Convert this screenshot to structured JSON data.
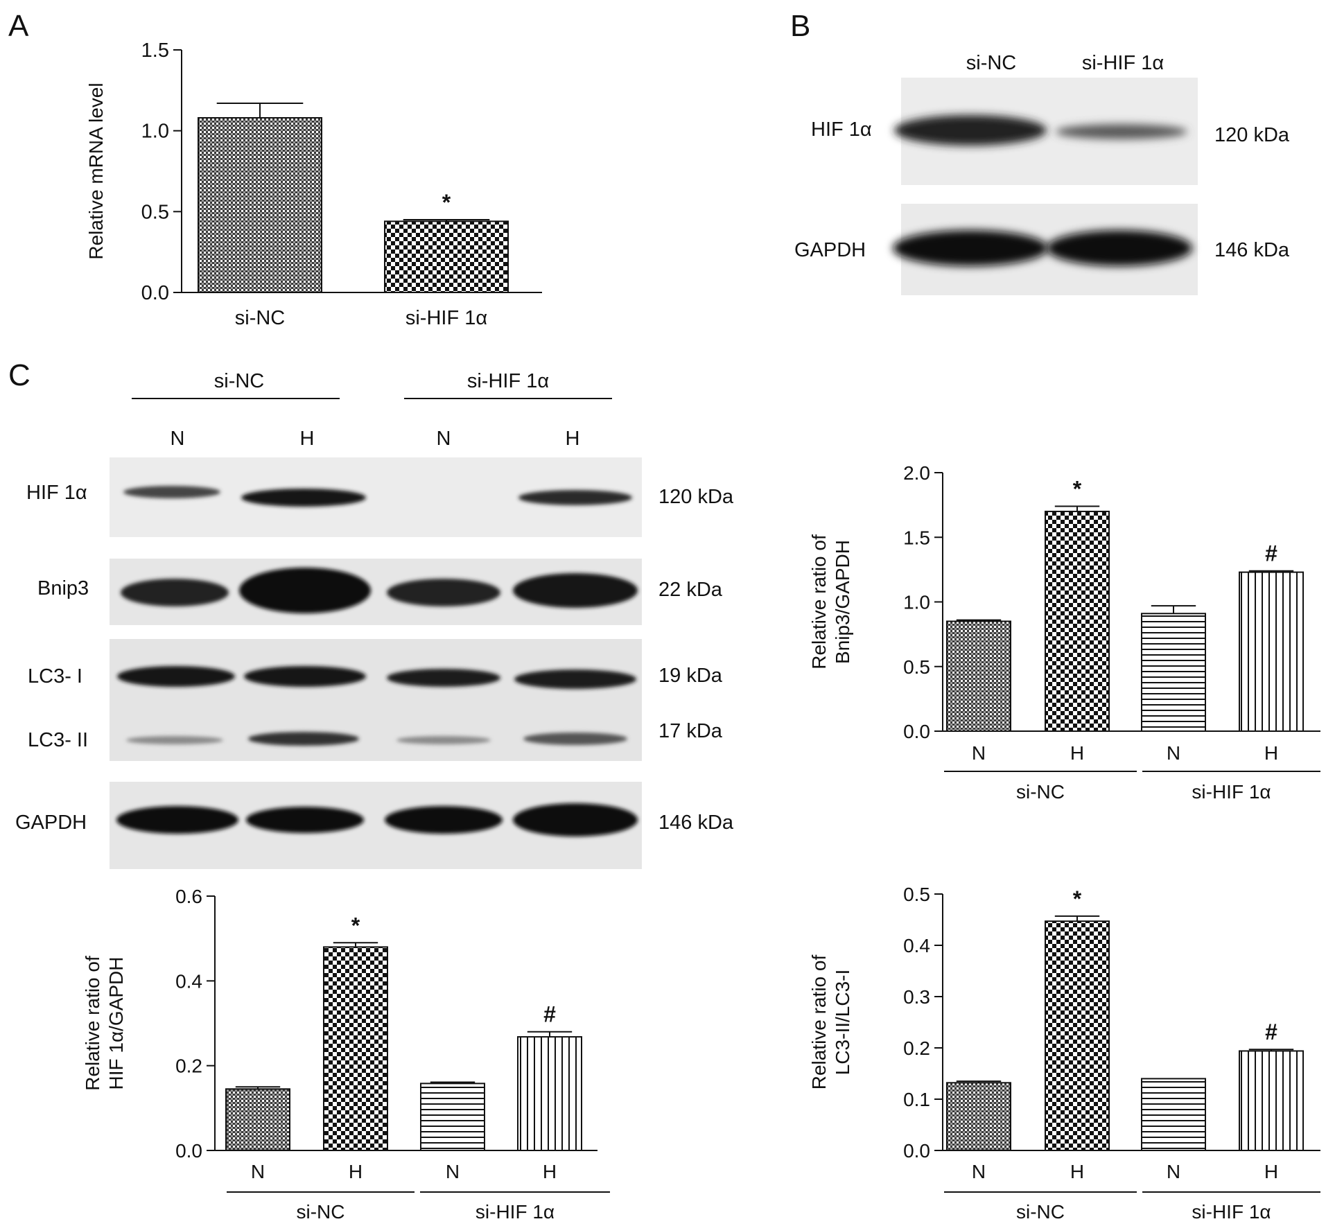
{
  "panels": {
    "A": {
      "letter": "A"
    },
    "B": {
      "letter": "B",
      "lanes": [
        "si-NC",
        "si-HIF 1α"
      ],
      "bands": [
        {
          "name": "HIF 1α",
          "kda": "120 kDa"
        },
        {
          "name": "GAPDH",
          "kda": "146 kDa"
        }
      ]
    },
    "C": {
      "letter": "C",
      "groups": [
        "si-NC",
        "si-HIF 1α"
      ],
      "lanes": [
        "N",
        "H",
        "N",
        "H"
      ],
      "bands": [
        {
          "name": "HIF 1α",
          "kda": "120 kDa"
        },
        {
          "name": "Bnip3",
          "kda": "22 kDa"
        },
        {
          "name": "LC3- I",
          "kda": "19 kDa"
        },
        {
          "name": "LC3- II",
          "kda": "17 kDa"
        },
        {
          "name": "GAPDH",
          "kda": "146 kDa"
        }
      ]
    }
  },
  "colors": {
    "ink": "#111111",
    "band": "#1a1a1a",
    "blot_bg": "#e9e9e9"
  },
  "chart_data": [
    {
      "id": "A",
      "type": "bar",
      "categories": [
        "si-NC",
        "si-HIF 1α"
      ],
      "values": [
        1.08,
        0.44
      ],
      "errors": [
        0.09,
        0.01
      ],
      "annotations": [
        "",
        "*"
      ],
      "patterns": [
        "dense",
        "checker"
      ],
      "ylabel": "Relative mRNA level",
      "ylim": [
        0,
        1.5
      ],
      "yticks": [
        "0.0",
        "0.5",
        "1.0",
        "1.5"
      ],
      "group_labels": []
    },
    {
      "id": "C-hif",
      "type": "bar",
      "categories": [
        "N",
        "H",
        "N",
        "H"
      ],
      "values": [
        0.145,
        0.48,
        0.158,
        0.268
      ],
      "errors": [
        0.005,
        0.01,
        0.003,
        0.012
      ],
      "annotations": [
        "",
        "*",
        "",
        "#"
      ],
      "patterns": [
        "dense",
        "checker",
        "hstripe",
        "vstripe"
      ],
      "ylabel": "Relative ratio of HIF 1α/GAPDH",
      "ylim": [
        0,
        0.6
      ],
      "yticks": [
        "0.0",
        "0.2",
        "0.4",
        "0.6"
      ],
      "group_labels": [
        "si-NC",
        "si-HIF 1α"
      ]
    },
    {
      "id": "C-bnip3",
      "type": "bar",
      "categories": [
        "N",
        "H",
        "N",
        "H"
      ],
      "values": [
        0.85,
        1.7,
        0.91,
        1.23
      ],
      "errors": [
        0.01,
        0.04,
        0.06,
        0.01
      ],
      "annotations": [
        "",
        "*",
        "",
        "#"
      ],
      "patterns": [
        "dense",
        "checker",
        "hstripe",
        "vstripe"
      ],
      "ylabel": "Relative ratio of Bnip3/GAPDH",
      "ylim": [
        0,
        2.0
      ],
      "yticks": [
        "0.0",
        "0.5",
        "1.0",
        "1.5",
        "2.0"
      ],
      "group_labels": [
        "si-NC",
        "si-HIF 1α"
      ]
    },
    {
      "id": "C-lc3",
      "type": "bar",
      "categories": [
        "N",
        "H",
        "N",
        "H"
      ],
      "values": [
        0.132,
        0.447,
        0.14,
        0.194
      ],
      "errors": [
        0.003,
        0.01,
        0.0,
        0.003
      ],
      "annotations": [
        "",
        "*",
        "",
        "#"
      ],
      "patterns": [
        "dense",
        "checker",
        "hstripe",
        "vstripe"
      ],
      "ylabel": "Relative ratio of LC3-II/LC3-I",
      "ylim": [
        0,
        0.5
      ],
      "yticks": [
        "0.0",
        "0.1",
        "0.2",
        "0.3",
        "0.4",
        "0.5"
      ],
      "group_labels": [
        "si-NC",
        "si-HIF 1α"
      ]
    }
  ]
}
